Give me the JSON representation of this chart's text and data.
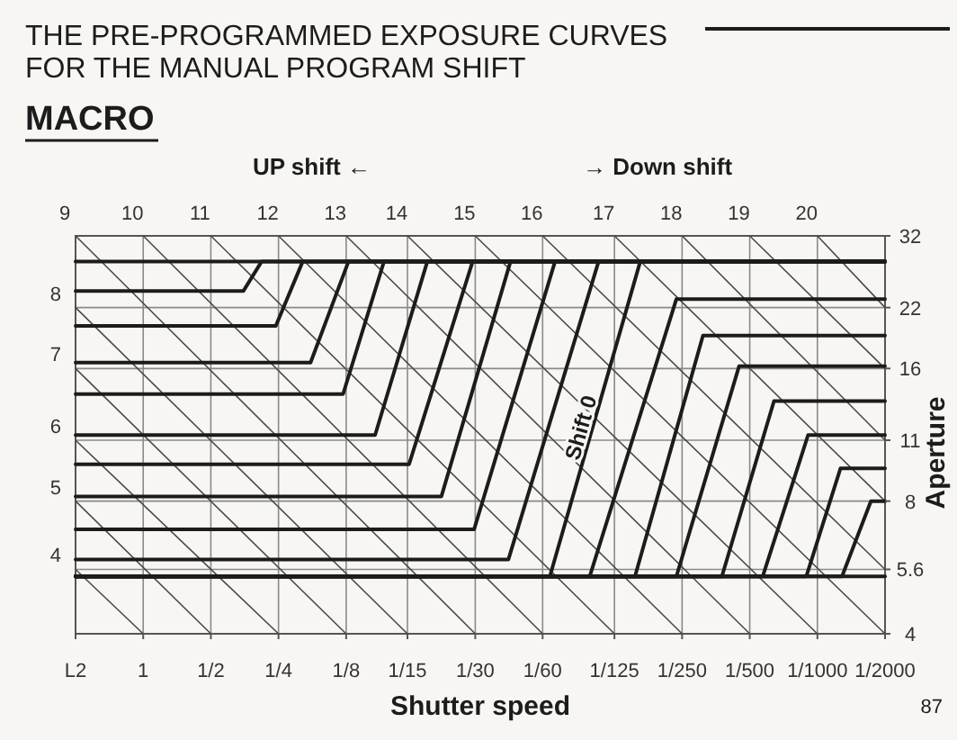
{
  "chart_data": {
    "type": "line",
    "title": "THE PRE-PROGRAMMED EXPOSURE CURVES\nFOR THE MANUAL PROGRAM SHIFT",
    "subtitle": "MACRO",
    "xlabel": "Shutter speed",
    "ylabel": "Aperture",
    "annotations": [
      "UP shift ←",
      "→ Down shift",
      "87"
    ],
    "log": "xy",
    "grid": true,
    "xlim": [
      2,
      0.0005
    ],
    "ylim": [
      4,
      32
    ],
    "xticks": [
      {
        "value": 2,
        "label": "L2"
      },
      1,
      {
        "value": 0.5,
        "label": "1/2"
      },
      {
        "value": 0.25,
        "label": "1/4"
      },
      {
        "value": 0.125,
        "label": "1/8"
      },
      {
        "value": 0.0667,
        "label": "1/15"
      },
      {
        "value": 0.0333,
        "label": "1/30"
      },
      {
        "value": 0.0167,
        "label": "1/60"
      },
      {
        "value": 0.008,
        "label": "1/125"
      },
      {
        "value": 0.004,
        "label": "1/250"
      },
      {
        "value": 0.002,
        "label": "1/500"
      },
      {
        "value": 0.001,
        "label": "1/1000"
      },
      {
        "value": 0.0005,
        "label": "1/2000"
      }
    ],
    "yticks": [
      4,
      5.6,
      8,
      11,
      16,
      22,
      32
    ],
    "series": [
      {
        "name": "4",
        "color": "#4a4a4a",
        "x": [
          2,
          1
        ],
        "values": [
          5.6,
          4
        ]
      },
      {
        "name": "5",
        "color": "#4a4a4a",
        "x": [
          2,
          0.5
        ],
        "values": [
          8,
          4
        ]
      },
      {
        "name": "6",
        "color": "#4a4a4a",
        "x": [
          2,
          0.25
        ],
        "values": [
          11,
          4
        ]
      },
      {
        "name": "7",
        "color": "#4a4a4a",
        "x": [
          2,
          0.125
        ],
        "values": [
          16,
          4
        ]
      },
      {
        "name": "8",
        "color": "#4a4a4a",
        "x": [
          2,
          0.0667
        ],
        "values": [
          22,
          4
        ]
      },
      {
        "name": "9",
        "color": "#4a4a4a",
        "x": [
          2,
          0.0333
        ],
        "values": [
          32,
          4
        ]
      },
      {
        "name": "10",
        "color": "#4a4a4a",
        "x": [
          1,
          0.0167
        ],
        "values": [
          32,
          4
        ]
      },
      {
        "name": "11",
        "color": "#4a4a4a",
        "x": [
          0.5,
          0.008
        ],
        "values": [
          32,
          4
        ]
      },
      {
        "name": "12",
        "color": "#4a4a4a",
        "x": [
          0.25,
          0.004
        ],
        "values": [
          32,
          4
        ]
      },
      {
        "name": "13",
        "color": "#4a4a4a",
        "x": [
          0.125,
          0.002
        ],
        "values": [
          32,
          4
        ]
      },
      {
        "name": "14",
        "color": "#4a4a4a",
        "x": [
          0.0667,
          0.001
        ],
        "values": [
          32,
          4
        ]
      },
      {
        "name": "15",
        "color": "#4a4a4a",
        "x": [
          0.0333,
          0.0005
        ],
        "values": [
          32,
          4
        ]
      },
      {
        "name": "16",
        "color": "#4a4a4a",
        "x": [
          0.0167,
          0.0005
        ],
        "values": [
          32,
          5.6
        ]
      },
      {
        "name": "17",
        "color": "#4a4a4a",
        "x": [
          0.008,
          0.0005
        ],
        "values": [
          32,
          8
        ]
      },
      {
        "name": "18",
        "color": "#4a4a4a",
        "x": [
          0.004,
          0.0005
        ],
        "values": [
          32,
          11
        ]
      },
      {
        "name": "19",
        "color": "#4a4a4a",
        "x": [
          0.002,
          0.0005
        ],
        "values": [
          32,
          16
        ]
      },
      {
        "name": "20",
        "color": "#4a4a4a",
        "x": [
          0.001,
          0.0005
        ],
        "values": [
          32,
          22
        ]
      },
      {
        "color": "#1c1c1c",
        "x": [
          2,
          0.0005
        ],
        "values": [
          28,
          28
        ]
      },
      {
        "color": "#1c1c1c",
        "x": [
          2,
          0.358,
          0.297,
          0.0005
        ],
        "values": [
          24,
          24,
          28,
          28
        ]
      },
      {
        "color": "#1c1c1c",
        "x": [
          2,
          0.257,
          0.195,
          0.0005
        ],
        "values": [
          20,
          20,
          28,
          28
        ]
      },
      {
        "color": "#1c1c1c",
        "x": [
          2,
          0.18,
          0.122,
          0.0005
        ],
        "values": [
          16.5,
          16.5,
          28,
          28
        ]
      },
      {
        "color": "#1c1c1c",
        "x": [
          2,
          0.129,
          0.0848,
          0.0005
        ],
        "values": [
          14,
          14,
          28,
          28
        ]
      },
      {
        "color": "#1c1c1c",
        "x": [
          2,
          0.0929,
          0.0544,
          0.0005
        ],
        "values": [
          11.3,
          11.3,
          28,
          28
        ]
      },
      {
        "color": "#1c1c1c",
        "x": [
          2,
          0.0656,
          0.0342,
          0.0005
        ],
        "values": [
          9.7,
          9.7,
          28,
          28
        ]
      },
      {
        "color": "#1c1c1c",
        "x": [
          2,
          0.0471,
          0.0232,
          0.0005
        ],
        "values": [
          8.2,
          8.2,
          28,
          28
        ]
      },
      {
        "color": "#1c1c1c",
        "x": [
          2,
          0.0337,
          0.0147,
          0.0005
        ],
        "values": [
          6.9,
          6.9,
          28,
          28
        ]
      },
      {
        "color": "#1c1c1c",
        "x": [
          2,
          0.0237,
          0.00941,
          0.0005
        ],
        "values": [
          5.9,
          5.9,
          28,
          28
        ]
      },
      {
        "name": "Shift 0",
        "color": "#1c1c1c",
        "x": [
          2,
          0.0155,
          0.00614,
          0.0005
        ],
        "values": [
          5.4,
          5.4,
          28,
          28
        ]
      },
      {
        "color": "#1c1c1c",
        "x": [
          2,
          0.0103,
          0.00424,
          0.0005
        ],
        "values": [
          5.4,
          5.4,
          23,
          23
        ]
      },
      {
        "color": "#1c1c1c",
        "x": [
          2,
          0.00648,
          0.00323,
          0.0005
        ],
        "values": [
          5.4,
          5.4,
          19,
          19
        ]
      },
      {
        "color": "#1c1c1c",
        "x": [
          2,
          0.00424,
          0.00223,
          0.0005
        ],
        "values": [
          5.4,
          5.4,
          16.2,
          16.2
        ]
      },
      {
        "color": "#1c1c1c",
        "x": [
          2,
          0.00266,
          0.00156,
          0.0005
        ],
        "values": [
          5.4,
          5.4,
          13.5,
          13.5
        ]
      },
      {
        "color": "#1c1c1c",
        "x": [
          2,
          0.00175,
          0.0011,
          0.0005
        ],
        "values": [
          5.4,
          5.4,
          11.3,
          11.3
        ]
      },
      {
        "color": "#1c1c1c",
        "x": [
          2,
          0.00112,
          0.000789,
          0.0005
        ],
        "values": [
          5.4,
          5.4,
          9.5,
          9.5
        ]
      },
      {
        "color": "#1c1c1c",
        "x": [
          2,
          0.000777,
          0.000578,
          0.0005
        ],
        "values": [
          5.4,
          5.4,
          8,
          8
        ]
      },
      {
        "color": "#1c1c1c",
        "x": [
          2,
          0.0005
        ],
        "values": [
          5.4,
          5.4
        ]
      }
    ]
  }
}
